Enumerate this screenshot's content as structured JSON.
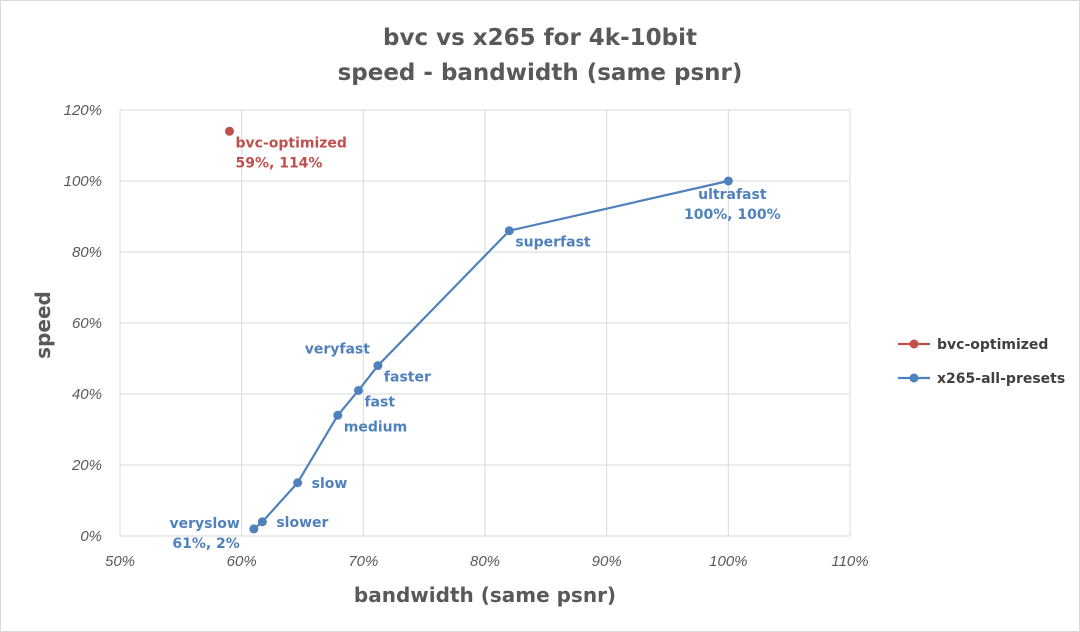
{
  "chart_data": {
    "type": "scatter",
    "title": [
      "bvc vs x265 for 4k-10bit",
      "speed - bandwidth (same psnr)"
    ],
    "xlabel": "bandwidth (same psnr)",
    "ylabel": "speed",
    "xlim": [
      50,
      110
    ],
    "ylim": [
      0,
      120
    ],
    "xticks": [
      50,
      60,
      70,
      80,
      90,
      100,
      110
    ],
    "yticks": [
      0,
      20,
      40,
      60,
      80,
      100,
      120
    ],
    "xtick_labels": [
      "50%",
      "60%",
      "70%",
      "80%",
      "90%",
      "100%",
      "110%"
    ],
    "ytick_labels": [
      "0%",
      "20%",
      "40%",
      "60%",
      "80%",
      "100%",
      "120%"
    ],
    "grid": true,
    "legend_position": "right",
    "series": [
      {
        "name": "bvc-optimized",
        "color": "#c0504d",
        "line": false,
        "points": [
          {
            "x": 59,
            "y": 114,
            "label": [
              "bvc-optimized",
              "59%, 114%"
            ],
            "label_pos": "below-right"
          }
        ]
      },
      {
        "name": "x265-all-presets",
        "color": "#4f81bd",
        "line": true,
        "points": [
          {
            "x": 61,
            "y": 2,
            "label": [
              "veryslow",
              "61%, 2%"
            ],
            "label_pos": "left"
          },
          {
            "x": 61.7,
            "y": 4,
            "label": [
              "slower"
            ],
            "label_pos": "right"
          },
          {
            "x": 64.6,
            "y": 15,
            "label": [
              "slow"
            ],
            "label_pos": "right"
          },
          {
            "x": 67.9,
            "y": 34,
            "label": [
              "medium"
            ],
            "label_pos": "below-right"
          },
          {
            "x": 69.6,
            "y": 41,
            "label": [
              "fast"
            ],
            "label_pos": "below-right"
          },
          {
            "x": 71.2,
            "y": 48,
            "label": [
              "faster"
            ],
            "label_pos": "below-right"
          },
          {
            "x": 71.2,
            "y": 48,
            "label": [
              "veryfast"
            ],
            "label_pos": "above-left"
          },
          {
            "x": 82,
            "y": 86,
            "label": [
              "superfast"
            ],
            "label_pos": "below-right"
          },
          {
            "x": 100,
            "y": 100,
            "label": [
              "ultrafast",
              "100%, 100%"
            ],
            "label_pos": "below"
          }
        ]
      }
    ]
  }
}
